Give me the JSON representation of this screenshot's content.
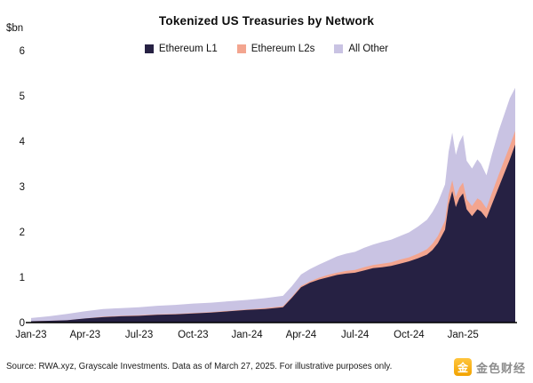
{
  "chart_data": {
    "type": "area",
    "stacked": true,
    "title": "Tokenized US Treasuries by Network",
    "ylabel": "$bn",
    "xlabel": "",
    "grid": false,
    "legend_position": "top",
    "ylim": [
      0,
      6
    ],
    "xlim": [
      0,
      27
    ],
    "y_ticks": [
      0,
      1,
      2,
      3,
      4,
      5,
      6
    ],
    "x_ticks": [
      0,
      3,
      6,
      9,
      12,
      15,
      18,
      21,
      24
    ],
    "x_tick_labels": [
      "Jan-23",
      "Apr-23",
      "Jul-23",
      "Oct-23",
      "Jan-24",
      "Apr-24",
      "Jul-24",
      "Oct-24",
      "Jan-25"
    ],
    "x_unit": "months since Jan-2023",
    "x": [
      0,
      1,
      2,
      3,
      4,
      5,
      6,
      7,
      8,
      9,
      10,
      11,
      12,
      13,
      14,
      14.5,
      15,
      15.5,
      16,
      16.5,
      17,
      17.5,
      18,
      18.5,
      19,
      19.5,
      20,
      20.5,
      21,
      21.5,
      22,
      22.3,
      22.6,
      23,
      23.2,
      23.4,
      23.6,
      23.8,
      24,
      24.2,
      24.5,
      24.8,
      25,
      25.3,
      25.6,
      26,
      26.3,
      26.6,
      26.9
    ],
    "series": [
      {
        "name": "Ethereum L1",
        "color": "#262143",
        "values": [
          0.03,
          0.04,
          0.05,
          0.09,
          0.12,
          0.14,
          0.15,
          0.17,
          0.18,
          0.2,
          0.22,
          0.25,
          0.28,
          0.3,
          0.34,
          0.55,
          0.78,
          0.88,
          0.95,
          1.0,
          1.05,
          1.08,
          1.1,
          1.15,
          1.2,
          1.22,
          1.25,
          1.3,
          1.35,
          1.42,
          1.5,
          1.6,
          1.75,
          2.05,
          2.6,
          2.9,
          2.55,
          2.75,
          2.85,
          2.5,
          2.35,
          2.5,
          2.45,
          2.3,
          2.6,
          3.0,
          3.3,
          3.6,
          3.93
        ]
      },
      {
        "name": "Ethereum L2s",
        "color": "#F3A58F",
        "values": [
          0.0,
          0.0,
          0.0,
          0.0,
          0.01,
          0.01,
          0.01,
          0.01,
          0.01,
          0.01,
          0.01,
          0.01,
          0.01,
          0.02,
          0.02,
          0.02,
          0.03,
          0.03,
          0.04,
          0.05,
          0.05,
          0.06,
          0.06,
          0.07,
          0.07,
          0.08,
          0.08,
          0.09,
          0.09,
          0.1,
          0.12,
          0.14,
          0.16,
          0.2,
          0.22,
          0.24,
          0.22,
          0.23,
          0.24,
          0.22,
          0.22,
          0.24,
          0.24,
          0.22,
          0.25,
          0.28,
          0.29,
          0.3,
          0.3
        ]
      },
      {
        "name": "All Other",
        "color": "#C9C3E3",
        "values": [
          0.07,
          0.1,
          0.14,
          0.16,
          0.17,
          0.17,
          0.18,
          0.19,
          0.2,
          0.21,
          0.21,
          0.21,
          0.21,
          0.22,
          0.23,
          0.24,
          0.25,
          0.27,
          0.29,
          0.32,
          0.36,
          0.38,
          0.4,
          0.43,
          0.45,
          0.48,
          0.5,
          0.52,
          0.55,
          0.6,
          0.65,
          0.7,
          0.74,
          0.8,
          0.95,
          1.05,
          0.93,
          1.0,
          1.05,
          0.85,
          0.83,
          0.86,
          0.81,
          0.73,
          0.85,
          0.97,
          1.01,
          1.05,
          0.95
        ]
      }
    ]
  },
  "footer": {
    "source": "Source: RWA.xyz, Grayscale Investments. Data as of March 27, 2025. For illustrative purposes only."
  },
  "watermark": {
    "text": "金色财经",
    "icon_glyph": "金",
    "icon_color": "#F7B500"
  }
}
